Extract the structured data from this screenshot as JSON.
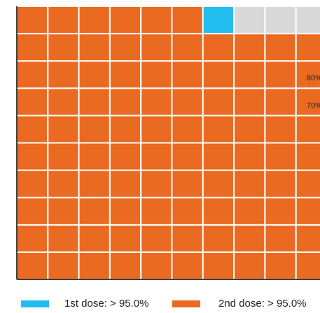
{
  "chart_data": {
    "type": "waffle",
    "grid": {
      "rows": 10,
      "columns": 10,
      "total_cells": 100
    },
    "cell_counts": {
      "2nd_dose": 96,
      "1st_dose": 1,
      "unvaccinated": 3
    },
    "fill_order": "left-to-right, bottom row to top row",
    "series": [
      {
        "name": "1st dose",
        "label": "1st dose: > 95.0%",
        "color": "#22BDEF"
      },
      {
        "name": "2nd dose",
        "label": "2nd dose: > 95.0%",
        "color": "#EA6A22"
      }
    ],
    "remainder_color": "#D9D9D9",
    "grid_line_color": "#FFFFFF",
    "annotations": [
      {
        "text": "80%",
        "row_from_top": 2
      },
      {
        "text": "70%",
        "row_from_top": 3
      }
    ],
    "legend_position": "bottom"
  }
}
